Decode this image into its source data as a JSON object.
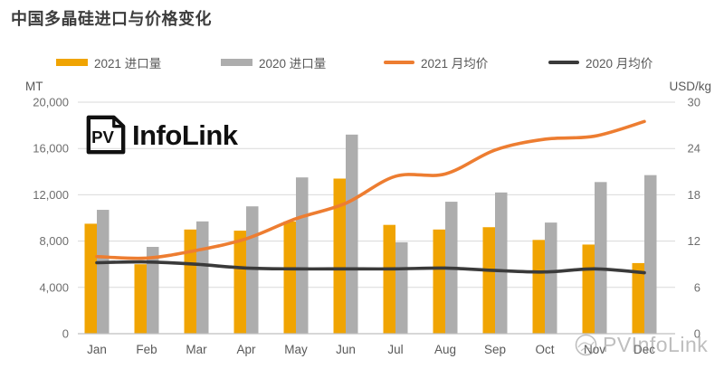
{
  "title": "中国多晶硅进口与价格变化",
  "logo": {
    "badge": "PV",
    "text_bold": "Info",
    "text_light": "Link"
  },
  "watermark": {
    "text": "PVInfoLink"
  },
  "legend": [
    {
      "label": "2021 进口量",
      "type": "bar",
      "color": "#F0A402"
    },
    {
      "label": "2020 进口量",
      "type": "bar",
      "color": "#ADADAD"
    },
    {
      "label": "2021 月均价",
      "type": "line",
      "color": "#ED7D31"
    },
    {
      "label": "2020 月均价",
      "type": "line",
      "color": "#3A3A3A"
    }
  ],
  "chart_data": {
    "type": "bar",
    "subtype": "grouped bars with two smoothed price lines (dual axis)",
    "categories": [
      "Jan",
      "Feb",
      "Mar",
      "Apr",
      "May",
      "Jun",
      "Jul",
      "Aug",
      "Sep",
      "Oct",
      "Nov",
      "Dec"
    ],
    "series": [
      {
        "key": "imports-2021",
        "name": "2021 进口量",
        "type": "bar",
        "axis": "left",
        "color": "#F0A402",
        "values": [
          9500,
          6000,
          9000,
          8900,
          9700,
          13400,
          9400,
          9000,
          9200,
          8100,
          7700,
          6100
        ]
      },
      {
        "key": "imports-2020",
        "name": "2020 进口量",
        "type": "bar",
        "axis": "left",
        "color": "#ADADAD",
        "values": [
          10700,
          7500,
          9700,
          11000,
          13500,
          17200,
          7900,
          11400,
          12200,
          9600,
          13100,
          13700
        ]
      },
      {
        "key": "price-2021",
        "name": "2021 月均价",
        "type": "line",
        "axis": "right",
        "color": "#ED7D31",
        "values": [
          10.0,
          9.8,
          10.8,
          12.3,
          14.9,
          16.9,
          20.4,
          20.7,
          23.8,
          25.2,
          25.6,
          27.5
        ]
      },
      {
        "key": "price-2020",
        "name": "2020 月均价",
        "type": "line",
        "axis": "right",
        "color": "#3A3A3A",
        "values": [
          9.2,
          9.3,
          9.0,
          8.5,
          8.4,
          8.4,
          8.4,
          8.5,
          8.2,
          8.0,
          8.4,
          7.9
        ]
      }
    ],
    "left_axis": {
      "label": "MT",
      "min": 0,
      "max": 20000,
      "step": 4000,
      "ticks": [
        "20,000",
        "16,000",
        "12,000",
        "8,000",
        "4,000",
        "0"
      ]
    },
    "right_axis": {
      "label": "USD/kg",
      "min": 0,
      "max": 30,
      "step": 6,
      "ticks": [
        "30",
        "24",
        "18",
        "12",
        "6",
        "0"
      ]
    },
    "grid": true,
    "legend_position": "top",
    "colors": {
      "grid": "#D9D9D9",
      "axis_line": "#BFBFBF",
      "tick_text": "#6E6E6E",
      "title_text": "#3D3D3D"
    }
  }
}
